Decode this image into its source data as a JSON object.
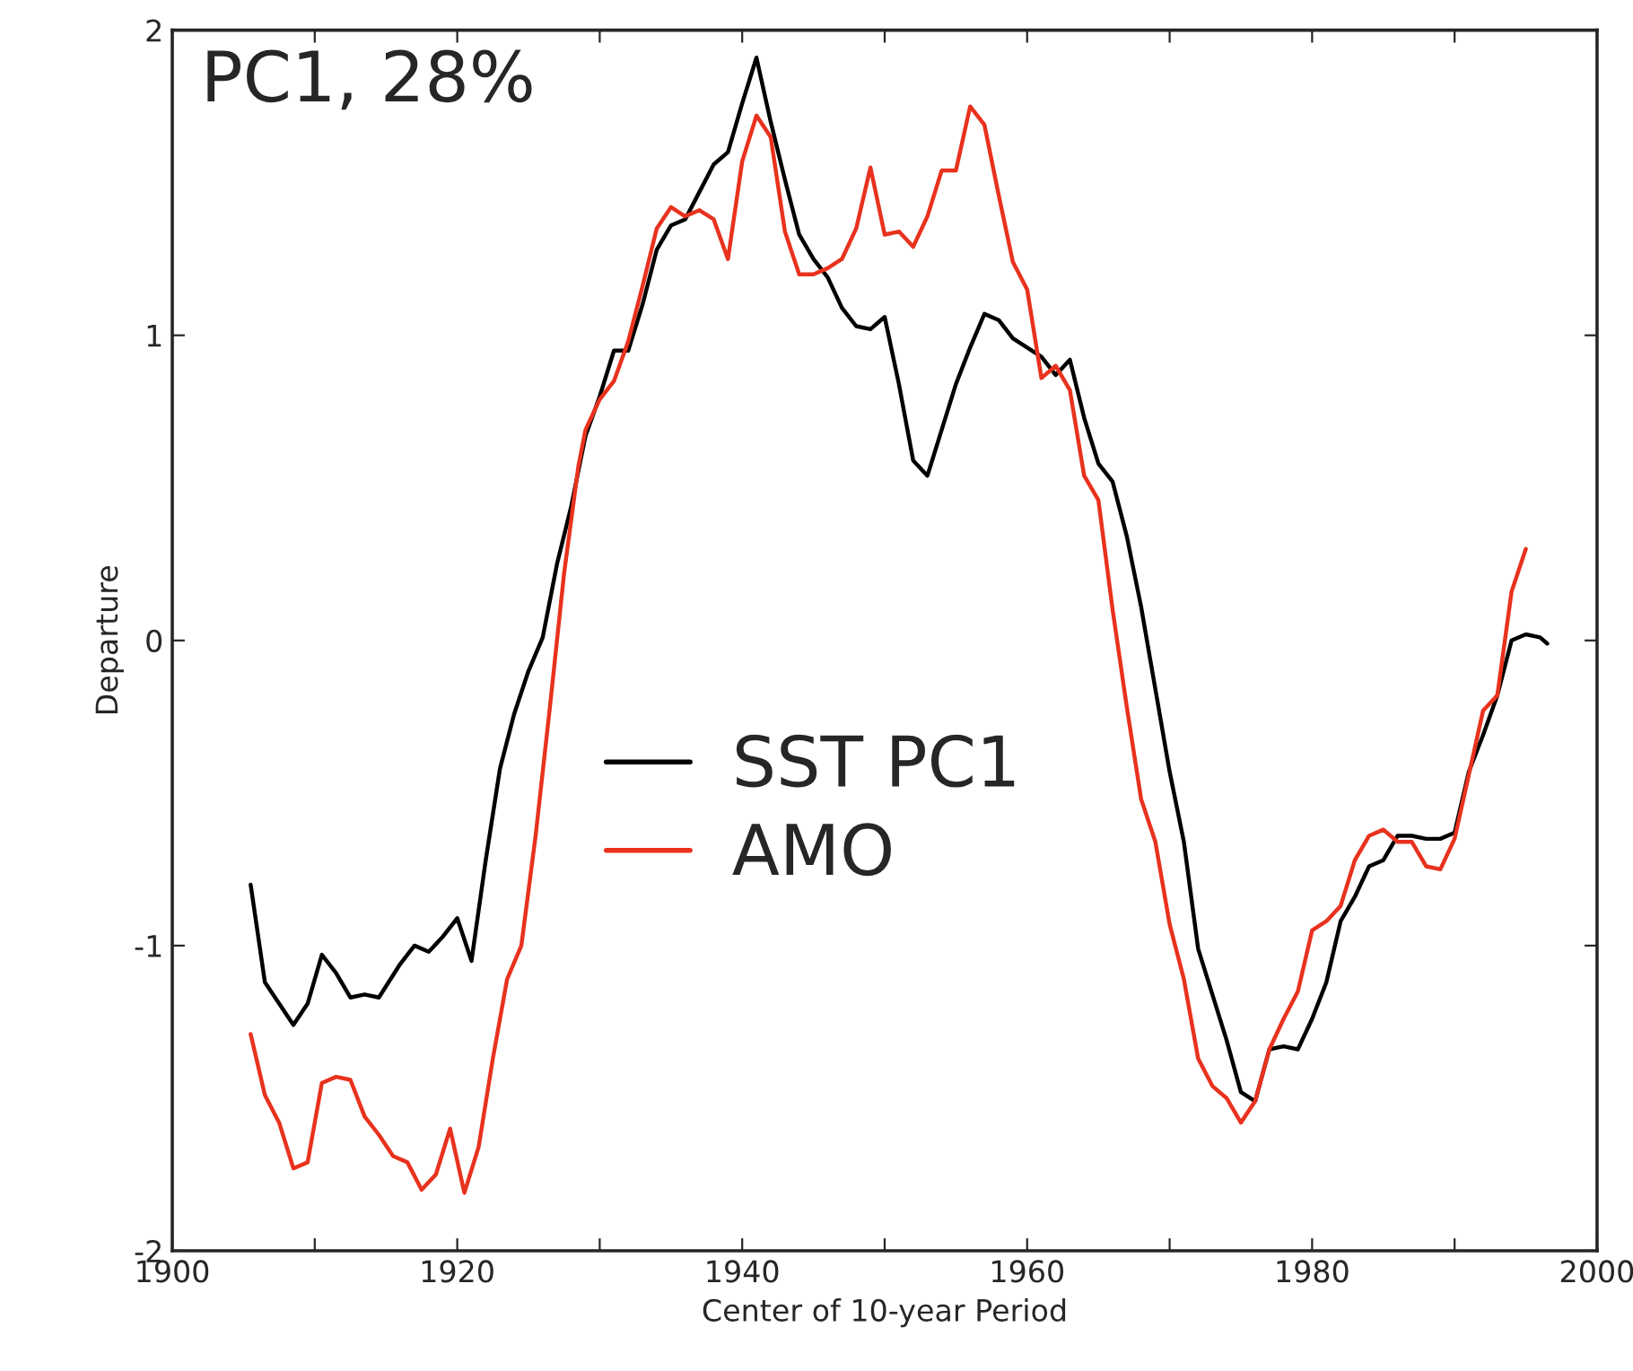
{
  "chart_data": {
    "type": "line",
    "xlabel": "Center of 10-year Period",
    "ylabel": "Departure",
    "annotations": [
      "PC1, 28%"
    ],
    "xlim": [
      1900,
      2000
    ],
    "ylim": [
      -2,
      2
    ],
    "xticks": [
      1900,
      {
        "value": 1910,
        "label": null
      },
      1920,
      {
        "value": 1930,
        "label": null
      },
      1940,
      {
        "value": 1950,
        "label": null
      },
      1960,
      {
        "value": 1970,
        "label": null
      },
      1980,
      {
        "value": 1990,
        "label": null
      },
      2000
    ],
    "yticks": [
      -2,
      -1,
      0,
      1,
      2
    ],
    "grid": false,
    "legend": "center",
    "marker": "none",
    "line_style": "solid",
    "series": [
      {
        "name": "SST PC1",
        "color": "#000000",
        "x": [
          1905.5,
          1906.5,
          1908.5,
          1909.5,
          1910.5,
          1911.5,
          1912.5,
          1913.5,
          1914.5,
          1916,
          1917,
          1918,
          1919,
          1920,
          1921,
          1922,
          1923,
          1924,
          1925,
          1926,
          1927,
          1928,
          1929,
          1930,
          1931,
          1932,
          1933,
          1934,
          1935,
          1936,
          1937,
          1938,
          1939,
          1940,
          1941,
          1942,
          1943,
          1944,
          1945,
          1946,
          1947,
          1948,
          1949,
          1950,
          1951,
          1952,
          1953,
          1954,
          1955,
          1956,
          1957,
          1958,
          1959,
          1960,
          1961,
          1962,
          1963,
          1964,
          1965,
          1966,
          1967,
          1968,
          1969,
          1970,
          1971,
          1972,
          1973,
          1974,
          1975,
          1976,
          1977,
          1978,
          1979,
          1980,
          1981,
          1982,
          1983,
          1984,
          1985,
          1986,
          1987,
          1988,
          1989,
          1990,
          1991,
          1992,
          1993,
          1994,
          1995,
          1996,
          1996.5
        ],
        "values": [
          -0.8,
          -1.12,
          -1.26,
          -1.19,
          -1.03,
          -1.09,
          -1.17,
          -1.16,
          -1.17,
          -1.06,
          -1.0,
          -1.02,
          -0.97,
          -0.91,
          -1.05,
          -0.72,
          -0.42,
          -0.24,
          -0.1,
          0.01,
          0.25,
          0.44,
          0.67,
          0.8,
          0.95,
          0.95,
          1.1,
          1.28,
          1.36,
          1.38,
          1.47,
          1.56,
          1.6,
          1.76,
          1.91,
          1.7,
          1.51,
          1.33,
          1.25,
          1.19,
          1.09,
          1.03,
          1.02,
          1.06,
          0.84,
          0.59,
          0.54,
          0.69,
          0.84,
          0.96,
          1.07,
          1.05,
          0.99,
          0.96,
          0.93,
          0.87,
          0.92,
          0.73,
          0.58,
          0.52,
          0.34,
          0.11,
          -0.16,
          -0.43,
          -0.66,
          -1.01,
          -1.16,
          -1.31,
          -1.48,
          -1.51,
          -1.34,
          -1.33,
          -1.34,
          -1.24,
          -1.12,
          -0.92,
          -0.84,
          -0.74,
          -0.72,
          -0.64,
          -0.64,
          -0.65,
          -0.65,
          -0.63,
          -0.43,
          -0.31,
          -0.18,
          0.0,
          0.02,
          0.01,
          -0.01
        ]
      },
      {
        "name": "AMO",
        "color": "#e8321e",
        "x": [
          1905.5,
          1906.5,
          1907.5,
          1908.5,
          1909.5,
          1910.5,
          1911.5,
          1912.5,
          1913.5,
          1914.5,
          1915.5,
          1916.5,
          1917.5,
          1918.5,
          1919.5,
          1920.5,
          1921.5,
          1922.5,
          1923.5,
          1924.5,
          1925.5,
          1926.5,
          1927.5,
          1928.5,
          1929,
          1930,
          1931,
          1932,
          1933,
          1934,
          1935,
          1936,
          1937,
          1938,
          1939,
          1940,
          1941,
          1942,
          1943,
          1944,
          1945,
          1946,
          1947,
          1948,
          1949,
          1950,
          1951,
          1952,
          1953,
          1954,
          1955,
          1956,
          1957,
          1958,
          1959,
          1960,
          1961,
          1962,
          1963,
          1964,
          1965,
          1966,
          1967,
          1968,
          1969,
          1970,
          1971,
          1972,
          1973,
          1974,
          1975,
          1976,
          1977,
          1978,
          1979,
          1980,
          1981,
          1982,
          1983,
          1984,
          1985,
          1986,
          1987,
          1988,
          1989,
          1990,
          1991,
          1992,
          1993,
          1994,
          1995
        ],
        "values": [
          -1.29,
          -1.49,
          -1.58,
          -1.73,
          -1.71,
          -1.45,
          -1.43,
          -1.44,
          -1.56,
          -1.62,
          -1.69,
          -1.71,
          -1.8,
          -1.75,
          -1.6,
          -1.81,
          -1.66,
          -1.37,
          -1.11,
          -1.0,
          -0.64,
          -0.22,
          0.22,
          0.57,
          0.69,
          0.79,
          0.85,
          0.98,
          1.16,
          1.35,
          1.42,
          1.39,
          1.41,
          1.38,
          1.25,
          1.57,
          1.72,
          1.65,
          1.34,
          1.2,
          1.2,
          1.22,
          1.25,
          1.35,
          1.55,
          1.33,
          1.34,
          1.29,
          1.39,
          1.54,
          1.54,
          1.75,
          1.69,
          1.46,
          1.24,
          1.15,
          0.86,
          0.9,
          0.82,
          0.54,
          0.46,
          0.1,
          -0.22,
          -0.52,
          -0.66,
          -0.93,
          -1.11,
          -1.37,
          -1.46,
          -1.5,
          -1.58,
          -1.51,
          -1.34,
          -1.24,
          -1.15,
          -0.95,
          -0.92,
          -0.87,
          -0.72,
          -0.64,
          -0.62,
          -0.66,
          -0.66,
          -0.74,
          -0.75,
          -0.65,
          -0.44,
          -0.23,
          -0.18,
          0.16,
          0.3
        ]
      }
    ]
  }
}
